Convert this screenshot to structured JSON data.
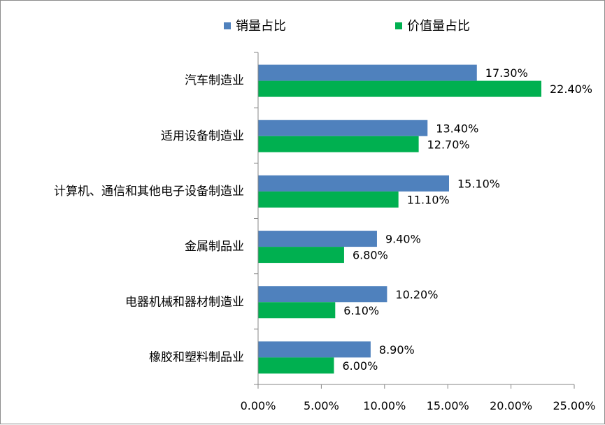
{
  "chart_data": {
    "type": "bar",
    "orientation": "horizontal",
    "categories": [
      "汽车制造业",
      "适用设备制造业",
      "计算机、通信和其他电子设备制造业",
      "金属制品业",
      "电器机械和器材制造业",
      "橡胶和塑料制品业"
    ],
    "series": [
      {
        "name": "销量占比",
        "color": "#4f81bd",
        "values": [
          17.3,
          13.4,
          15.1,
          9.4,
          10.2,
          8.9
        ],
        "labels": [
          "17.30%",
          "13.40%",
          "15.10%",
          "9.40%",
          "10.20%",
          "8.90%"
        ]
      },
      {
        "name": "价值量占比",
        "color": "#00b050",
        "values": [
          22.4,
          12.7,
          11.1,
          6.8,
          6.1,
          6.0
        ],
        "labels": [
          "22.40%",
          "12.70%",
          "11.10%",
          "6.80%",
          "6.10%",
          "6.00%"
        ]
      }
    ],
    "xlim": [
      0,
      25
    ],
    "x_ticks": [
      0,
      5,
      10,
      15,
      20,
      25
    ],
    "x_tick_labels": [
      "0.00%",
      "5.00%",
      "10.00%",
      "15.00%",
      "20.00%",
      "25.00%"
    ],
    "title": "",
    "xlabel": "",
    "ylabel": "",
    "grid": false,
    "legend_position": "top"
  }
}
